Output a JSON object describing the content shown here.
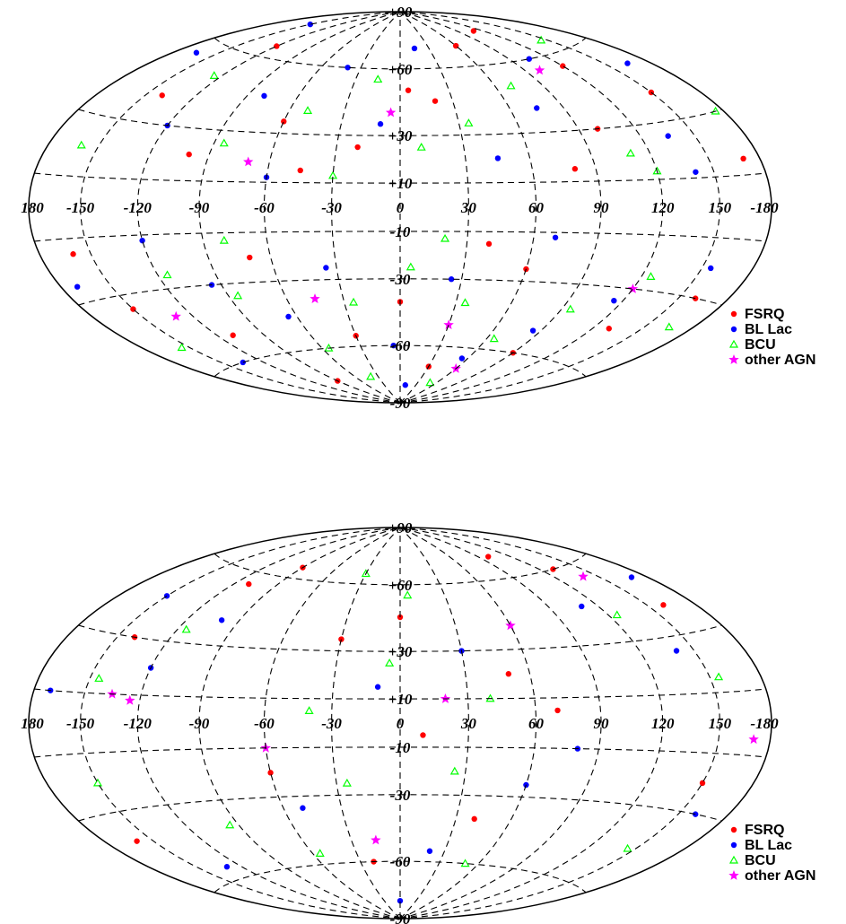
{
  "chart_data": [
    {
      "type": "scatter",
      "projection": "hammer-aitoff",
      "coordinate_system": "galactic",
      "panel": "top",
      "masked_band": "|b| < 10",
      "grid": true,
      "legend_placement": "bottom-right",
      "lon_tick_labels": [
        "180",
        "150",
        "120",
        "90",
        "60",
        "30",
        "0",
        "-30",
        "-60",
        "-90",
        "-120",
        "-150",
        "-180"
      ],
      "lat_tick_labels": [
        "+90",
        "+60",
        "+30",
        "+10",
        "-10",
        "-30",
        "-60",
        "-90"
      ],
      "series": [
        {
          "name": "FSRQ",
          "marker": "filled-circle",
          "color": "#ff0000",
          "points": [
            [
              150,
              40
            ],
            [
              120,
              55
            ],
            [
              100,
              30
            ],
            [
              60,
              70
            ],
            [
              20,
              45
            ],
            [
              5,
              50
            ],
            [
              -20,
              25
            ],
            [
              -60,
              35
            ],
            [
              -100,
              20
            ],
            [
              -140,
              40
            ],
            [
              160,
              -30
            ],
            [
              130,
              -45
            ],
            [
              90,
              -60
            ],
            [
              60,
              -25
            ],
            [
              30,
              -70
            ],
            [
              0,
              -40
            ],
            [
              -30,
              -55
            ],
            [
              -70,
              -20
            ],
            [
              -110,
              -50
            ],
            [
              -150,
              -35
            ],
            [
              170,
              15
            ],
            [
              80,
              15
            ],
            [
              -45,
              15
            ],
            [
              -160,
              -15
            ],
            [
              40,
              -15
            ],
            [
              -90,
              -75
            ],
            [
              110,
              75
            ],
            [
              -120,
              65
            ]
          ]
        },
        {
          "name": "BL Lac",
          "marker": "filled-circle",
          "color": "#0000ff",
          "points": [
            [
              165,
              50
            ],
            [
              135,
              25
            ],
            [
              105,
              60
            ],
            [
              75,
              40
            ],
            [
              45,
              20
            ],
            [
              15,
              70
            ],
            [
              -10,
              35
            ],
            [
              -40,
              60
            ],
            [
              -80,
              45
            ],
            [
              -120,
              30
            ],
            [
              -165,
              55
            ],
            [
              155,
              -20
            ],
            [
              115,
              -35
            ],
            [
              85,
              -50
            ],
            [
              55,
              -65
            ],
            [
              25,
              -30
            ],
            [
              -5,
              -60
            ],
            [
              -35,
              -25
            ],
            [
              -65,
              -45
            ],
            [
              -95,
              -30
            ],
            [
              -135,
              -60
            ],
            [
              -170,
              -25
            ],
            [
              140,
              12
            ],
            [
              -60,
              12
            ],
            [
              70,
              -12
            ],
            [
              -120,
              -12
            ],
            [
              10,
              -80
            ],
            [
              -150,
              75
            ]
          ]
        },
        {
          "name": "BCU",
          "marker": "open-triangle",
          "color": "#00ff00",
          "points": [
            [
              175,
              30
            ],
            [
              145,
              65
            ],
            [
              110,
              20
            ],
            [
              70,
              50
            ],
            [
              35,
              35
            ],
            [
              10,
              25
            ],
            [
              -15,
              55
            ],
            [
              -50,
              40
            ],
            [
              -85,
              25
            ],
            [
              -125,
              50
            ],
            [
              -160,
              20
            ],
            [
              165,
              -40
            ],
            [
              125,
              -25
            ],
            [
              95,
              -40
            ],
            [
              65,
              -55
            ],
            [
              35,
              -40
            ],
            [
              5,
              -25
            ],
            [
              -25,
              -40
            ],
            [
              -55,
              -60
            ],
            [
              -85,
              -35
            ],
            [
              -115,
              -25
            ],
            [
              -155,
              -50
            ],
            [
              120,
              13
            ],
            [
              -30,
              13
            ],
            [
              20,
              -13
            ],
            [
              -80,
              -13
            ],
            [
              50,
              -78
            ],
            [
              -40,
              -75
            ]
          ]
        },
        {
          "name": "other AGN",
          "marker": "star",
          "color": "#ff00ff",
          "points": [
            [
              100,
              55
            ],
            [
              -5,
              40
            ],
            [
              -70,
              18
            ],
            [
              120,
              -30
            ],
            [
              30,
              -50
            ],
            [
              -45,
              -38
            ],
            [
              -130,
              -40
            ],
            [
              60,
              -70
            ]
          ]
        }
      ]
    },
    {
      "type": "scatter",
      "projection": "hammer-aitoff",
      "coordinate_system": "supergalactic",
      "panel": "bottom",
      "grid": true,
      "legend_placement": "bottom-right",
      "lon_tick_labels": [
        "180",
        "150",
        "120",
        "90",
        "60",
        "30",
        "0",
        "-30",
        "-60",
        "-90",
        "-120",
        "-150",
        "-180"
      ],
      "lat_tick_labels": [
        "+90",
        "+60",
        "+30",
        "+10",
        "-10",
        "-30",
        "-60",
        "-90"
      ],
      "series": [
        {
          "name": "FSRQ",
          "marker": "filled-circle",
          "color": "#ff0000",
          "points": [
            [
              160,
              40
            ],
            [
              130,
              60
            ],
            [
              -140,
              30
            ],
            [
              -110,
              55
            ],
            [
              50,
              20
            ],
            [
              10,
              -5
            ],
            [
              -30,
              35
            ],
            [
              40,
              -40
            ],
            [
              -20,
              -60
            ],
            [
              150,
              -20
            ],
            [
              -160,
              -40
            ],
            [
              0,
              45
            ],
            [
              70,
              5
            ],
            [
              -60,
              -20
            ],
            [
              100,
              70
            ],
            [
              -90,
              65
            ]
          ]
        },
        {
          "name": "BL Lac",
          "marker": "filled-circle",
          "color": "#0000ff",
          "points": [
            [
              170,
              50
            ],
            [
              140,
              25
            ],
            [
              -150,
              45
            ],
            [
              -120,
              20
            ],
            [
              -170,
              10
            ],
            [
              30,
              30
            ],
            [
              -10,
              15
            ],
            [
              60,
              -25
            ],
            [
              -50,
              -35
            ],
            [
              20,
              -55
            ],
            [
              160,
              -30
            ],
            [
              -130,
              -55
            ],
            [
              110,
              45
            ],
            [
              -100,
              40
            ],
            [
              0,
              -80
            ],
            [
              80,
              -10
            ]
          ]
        },
        {
          "name": "BCU",
          "marker": "open-triangle",
          "color": "#00ff00",
          "points": [
            [
              155,
              15
            ],
            [
              125,
              40
            ],
            [
              -145,
              15
            ],
            [
              -115,
              35
            ],
            [
              40,
              10
            ],
            [
              -5,
              25
            ],
            [
              -40,
              5
            ],
            [
              25,
              -20
            ],
            [
              -25,
              -25
            ],
            [
              50,
              -60
            ],
            [
              -55,
              -55
            ],
            [
              145,
              -45
            ],
            [
              -150,
              -20
            ],
            [
              -95,
              -40
            ],
            [
              5,
              55
            ],
            [
              -30,
              65
            ]
          ]
        },
        {
          "name": "other AGN",
          "marker": "star",
          "color": "#ff00ff",
          "points": [
            [
              140,
              55
            ],
            [
              -135,
              10
            ],
            [
              -125,
              8
            ],
            [
              20,
              10
            ],
            [
              -15,
              -50
            ],
            [
              60,
              40
            ],
            [
              170,
              -5
            ],
            [
              -60,
              -10
            ]
          ]
        }
      ]
    }
  ]
}
